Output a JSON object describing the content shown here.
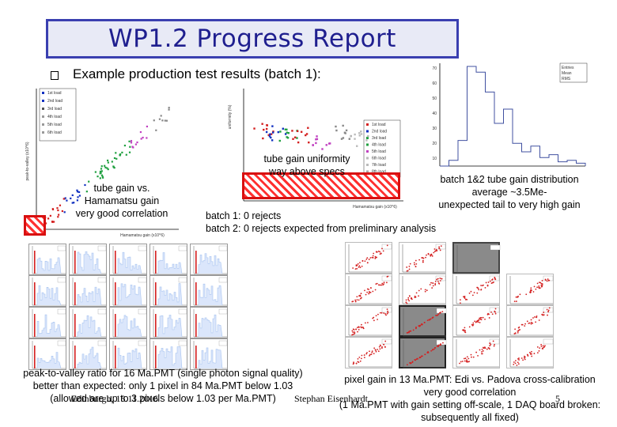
{
  "slide": {
    "title": "WP1.2 Progress Report",
    "bullet": "Example production test results (batch 1):",
    "captions": {
      "gain_corr": [
        "tube gain vs.",
        "Hamamatsu gain",
        "very good correlation"
      ],
      "uniformity": [
        "tube gain uniformity",
        "way above specs"
      ],
      "distribution": [
        "batch 1&2 tube gain distribution",
        "average ~3.5Me-",
        "unexpected tail to very high gain"
      ],
      "rejects": [
        "batch 1: 0 rejects",
        "batch 2: 0 rejects expected from preliminary analysis"
      ],
      "pv": [
        "peak-to-valley ratio for 16 Ma.PMT (single photon signal quality)",
        "better than expected: only 1 pixel in 84 Ma.PMT below 1.03",
        "(allowed are up to 3 pixels below 1.03 per Ma.PMT)"
      ],
      "pixel_gain": [
        "pixel gain in 13 Ma.PMT: Edi vs. Padova cross-calibration",
        "very good correlation",
        "(1 Ma.PMT with gain setting off-scale, 1 DAQ board broken:",
        "subsequently all fixed)"
      ]
    },
    "footer": {
      "location_date": "Edinburgh, 18.11.2016",
      "author": "Stephan Eisenhardt",
      "page": "5"
    }
  },
  "plots": {
    "gain_corr": {
      "ylabel": "peak-to-valley (x10^6)",
      "xlabel": "Hamamatsu gain (x10^6)",
      "legend": [
        "1st load",
        "2nd load",
        "3rd load",
        "4th load",
        "5th load",
        "6th load"
      ]
    },
    "uniformity": {
      "ylabel": "uniformity (%)",
      "xlabel": "Hamamatsu gain (x10^6)",
      "legend": [
        "1st load",
        "2nd load",
        "3rd load",
        "4th load",
        "5th load",
        "6th load",
        "7th load",
        "8th load"
      ]
    },
    "distribution": {
      "yticks": [
        "70",
        "60",
        "50",
        "40",
        "30",
        "20",
        "10"
      ],
      "stats": [
        "Entries",
        "Mean",
        "RMS"
      ]
    }
  },
  "colors": {
    "title_border": "#3a3fb0",
    "title_text": "#1f1f8f",
    "hatch": "#ff3030",
    "hist_fill": "#a8c4f0",
    "scatter": "#d42020"
  }
}
